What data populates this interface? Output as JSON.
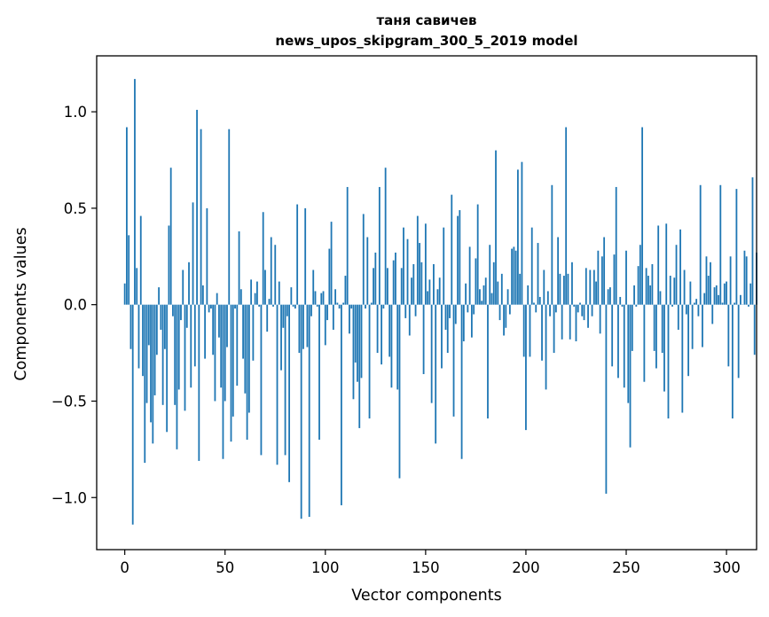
{
  "chart_data": {
    "type": "bar",
    "title_lines": [
      "таня савичев",
      "news_upos_skipgram_300_5_2019 model"
    ],
    "xlabel": "Vector components",
    "ylabel": "Components values",
    "xlim": [
      -14,
      315
    ],
    "ylim": [
      -1.27,
      1.29
    ],
    "xticks": [
      0,
      50,
      100,
      150,
      200,
      250,
      300
    ],
    "xtick_labels": [
      "0",
      "50",
      "100",
      "150",
      "200",
      "250",
      "300"
    ],
    "yticks": [
      -1.0,
      -0.5,
      0.0,
      0.5,
      1.0
    ],
    "ytick_labels": [
      "−1.0",
      "−0.5",
      "0.0",
      "0.5",
      "1.0"
    ],
    "grid": false,
    "bar_color": "#1f77b4",
    "values": [
      0.11,
      0.92,
      0.36,
      -0.23,
      -1.14,
      1.17,
      0.19,
      -0.33,
      0.46,
      -0.37,
      -0.82,
      -0.51,
      -0.21,
      -0.61,
      -0.72,
      -0.47,
      -0.26,
      0.09,
      -0.13,
      -0.52,
      -0.23,
      -0.66,
      0.41,
      0.71,
      -0.06,
      -0.52,
      -0.75,
      -0.44,
      -0.08,
      0.18,
      -0.55,
      -0.12,
      0.22,
      -0.43,
      0.53,
      -0.32,
      1.01,
      -0.81,
      0.91,
      0.1,
      -0.28,
      0.5,
      -0.04,
      -0.02,
      -0.26,
      -0.5,
      0.06,
      -0.17,
      -0.43,
      -0.8,
      -0.5,
      -0.22,
      0.91,
      -0.71,
      -0.58,
      -0.02,
      -0.42,
      0.38,
      0.08,
      -0.28,
      -0.46,
      -0.7,
      -0.56,
      0.13,
      -0.29,
      0.06,
      0.12,
      -0.01,
      -0.78,
      0.48,
      0.18,
      -0.14,
      0.03,
      0.35,
      -0.01,
      0.31,
      -0.83,
      0.12,
      -0.34,
      -0.12,
      -0.78,
      -0.06,
      -0.92,
      0.09,
      -0.01,
      -0.02,
      0.52,
      -0.25,
      -1.11,
      -0.23,
      0.5,
      -0.22,
      -1.1,
      -0.06,
      0.18,
      0.07,
      -0.01,
      -0.7,
      0.06,
      0.07,
      -0.21,
      -0.08,
      0.29,
      0.43,
      -0.13,
      0.08,
      0.01,
      -0.02,
      -1.04,
      0.01,
      0.15,
      0.61,
      -0.15,
      -0.02,
      -0.49,
      -0.3,
      -0.4,
      -0.64,
      -0.38,
      0.47,
      -0.02,
      0.35,
      -0.59,
      0.01,
      0.19,
      0.27,
      -0.25,
      0.61,
      -0.31,
      -0.02,
      0.71,
      0.19,
      -0.27,
      -0.43,
      0.23,
      0.27,
      -0.44,
      -0.9,
      0.19,
      0.4,
      -0.07,
      0.34,
      -0.16,
      0.14,
      0.21,
      -0.06,
      0.46,
      0.32,
      0.22,
      -0.36,
      0.42,
      0.07,
      0.13,
      -0.51,
      0.21,
      -0.72,
      0.08,
      0.14,
      -0.33,
      0.4,
      -0.13,
      -0.25,
      -0.07,
      0.57,
      -0.58,
      -0.1,
      0.46,
      0.49,
      -0.8,
      -0.19,
      0.11,
      -0.04,
      0.3,
      -0.17,
      -0.05,
      0.24,
      0.52,
      0.08,
      0.02,
      0.1,
      0.14,
      -0.59,
      0.31,
      0.06,
      0.22,
      0.8,
      0.12,
      -0.08,
      0.16,
      -0.16,
      -0.12,
      0.08,
      -0.05,
      0.29,
      0.3,
      0.28,
      0.7,
      0.16,
      0.74,
      -0.27,
      -0.65,
      0.1,
      -0.27,
      0.4,
      0.01,
      -0.04,
      0.32,
      0.04,
      -0.29,
      0.18,
      -0.44,
      0.07,
      -0.06,
      0.62,
      -0.25,
      -0.04,
      0.35,
      0.16,
      -0.18,
      0.15,
      0.92,
      0.16,
      -0.18,
      0.22,
      -0.01,
      -0.19,
      -0.04,
      0.01,
      -0.06,
      -0.08,
      0.19,
      -0.12,
      0.18,
      -0.06,
      0.18,
      0.12,
      0.28,
      -0.15,
      0.25,
      0.35,
      -0.98,
      0.08,
      0.09,
      -0.32,
      0.26,
      0.61,
      -0.38,
      0.04,
      -0.01,
      -0.43,
      0.28,
      -0.51,
      -0.74,
      -0.24,
      0.1,
      -0.01,
      0.2,
      0.31,
      0.92,
      -0.4,
      0.19,
      0.15,
      0.1,
      0.21,
      -0.24,
      -0.33,
      0.41,
      0.07,
      -0.25,
      -0.45,
      0.42,
      -0.59,
      0.15,
      -0.01,
      0.14,
      0.31,
      -0.13,
      0.39,
      -0.56,
      0.18,
      -0.05,
      -0.37,
      0.12,
      -0.23,
      0.01,
      0.03,
      -0.06,
      0.62,
      -0.22,
      0.06,
      0.25,
      0.15,
      0.22,
      -0.1,
      0.09,
      0.1,
      0.05,
      0.62,
      0.01,
      0.11,
      0.12,
      -0.32,
      0.25,
      -0.59,
      0.01,
      0.6,
      -0.38,
      0.05,
      0.0,
      0.28,
      0.25,
      -0.01,
      0.11,
      0.66,
      -0.26,
      0.27
    ]
  }
}
